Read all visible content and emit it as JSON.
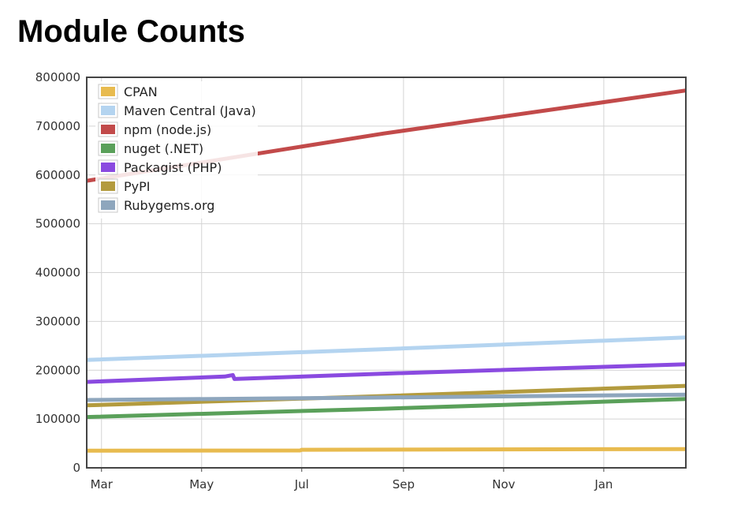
{
  "chart_data": {
    "type": "line",
    "title": "Module Counts",
    "x_start": "2014-02-20",
    "x_end": "2015-02-20",
    "x_ticks": [
      {
        "label": "Mar",
        "date": "2014-03-01"
      },
      {
        "label": "May",
        "date": "2014-05-01"
      },
      {
        "label": "Jul",
        "date": "2014-07-01"
      },
      {
        "label": "Sep",
        "date": "2014-09-01"
      },
      {
        "label": "Nov",
        "date": "2014-11-01"
      },
      {
        "label": "Jan",
        "date": "2015-01-01"
      }
    ],
    "ylim": [
      0,
      800000
    ],
    "y_ticks": [
      0,
      100000,
      200000,
      300000,
      400000,
      500000,
      600000,
      700000,
      800000
    ],
    "grid": true,
    "legend_position": "top-left",
    "series": [
      {
        "name": "CPAN",
        "color": "#e8bb4f",
        "points": [
          [
            "2014-02-20",
            35000
          ],
          [
            "2014-06-30",
            35500
          ],
          [
            "2014-07-01",
            37000
          ],
          [
            "2015-02-20",
            38500
          ]
        ]
      },
      {
        "name": "Maven Central (Java)",
        "color": "#b4d4f0",
        "points": [
          [
            "2014-02-20",
            221000
          ],
          [
            "2014-08-20",
            243000
          ],
          [
            "2015-02-20",
            267000
          ]
        ]
      },
      {
        "name": "npm (node.js)",
        "color": "#c24a4a",
        "points": [
          [
            "2014-02-20",
            588000
          ],
          [
            "2014-08-20",
            685000
          ],
          [
            "2015-02-20",
            773000
          ]
        ]
      },
      {
        "name": "nuget (.NET)",
        "color": "#5aa05a",
        "points": [
          [
            "2014-02-20",
            104000
          ],
          [
            "2014-08-20",
            121000
          ],
          [
            "2015-02-20",
            141000
          ]
        ]
      },
      {
        "name": "Packagist (PHP)",
        "color": "#8a4ae0",
        "points": [
          [
            "2014-02-20",
            176000
          ],
          [
            "2014-05-15",
            187000
          ],
          [
            "2014-05-20",
            190000
          ],
          [
            "2014-05-21",
            182000
          ],
          [
            "2014-08-20",
            193000
          ],
          [
            "2015-02-20",
            212000
          ]
        ]
      },
      {
        "name": "PyPI",
        "color": "#b39b3e",
        "points": [
          [
            "2014-02-20",
            128000
          ],
          [
            "2014-08-20",
            147000
          ],
          [
            "2015-02-20",
            168000
          ]
        ]
      },
      {
        "name": "Rubygems.org",
        "color": "#8ea6bd",
        "points": [
          [
            "2014-02-20",
            139000
          ],
          [
            "2014-08-20",
            144000
          ],
          [
            "2015-02-20",
            150000
          ]
        ]
      }
    ]
  }
}
